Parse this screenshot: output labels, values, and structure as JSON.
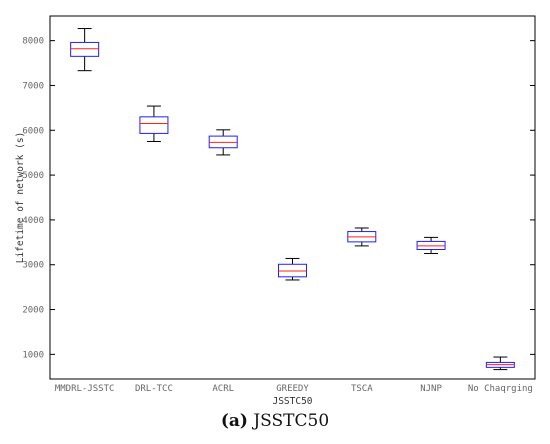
{
  "chart_data": {
    "type": "box",
    "title": "",
    "xlabel": "JSSTC50",
    "ylabel": "Lifetime of network (s)",
    "ylim": [
      450,
      8550
    ],
    "yticks": [
      1000,
      2000,
      3000,
      4000,
      5000,
      6000,
      7000,
      8000
    ],
    "grid": false,
    "categories": [
      "MMDRL-JSSTC",
      "DRL-TCC",
      "ACRL",
      "GREEDY",
      "TSCA",
      "NJNP",
      "No Chaqrging"
    ],
    "boxes": [
      {
        "whisker_low": 7330,
        "q1": 7650,
        "median": 7820,
        "q3": 7960,
        "whisker_high": 8270
      },
      {
        "whisker_low": 5750,
        "q1": 5930,
        "median": 6150,
        "q3": 6300,
        "whisker_high": 6540
      },
      {
        "whisker_low": 5450,
        "q1": 5610,
        "median": 5730,
        "q3": 5870,
        "whisker_high": 6010
      },
      {
        "whisker_low": 2660,
        "q1": 2730,
        "median": 2860,
        "q3": 3010,
        "whisker_high": 3140
      },
      {
        "whisker_low": 3420,
        "q1": 3510,
        "median": 3620,
        "q3": 3740,
        "whisker_high": 3820
      },
      {
        "whisker_low": 3250,
        "q1": 3340,
        "median": 3420,
        "q3": 3520,
        "whisker_high": 3610
      },
      {
        "whisker_low": 660,
        "q1": 710,
        "median": 770,
        "q3": 820,
        "whisker_high": 940
      }
    ],
    "colors": {
      "box": "#1f1fff",
      "median": "#ff2020",
      "whisker": "#000000",
      "axes": "#000000"
    }
  },
  "caption": {
    "label": "(a)",
    "text": "JSSTC50"
  }
}
